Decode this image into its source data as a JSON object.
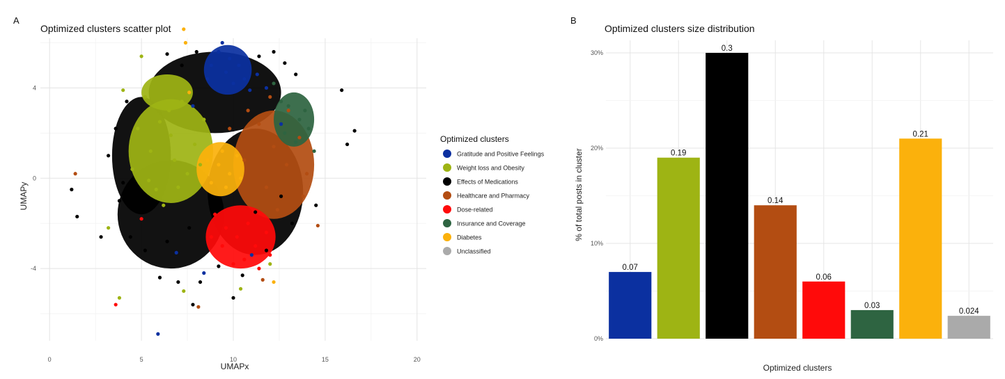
{
  "panels": {
    "a_label": "A",
    "b_label": "B"
  },
  "chart_data": [
    {
      "type": "scatter",
      "title": "Optimized clusters scatter plot",
      "xlabel": "UMAPx",
      "ylabel": "UMAPy",
      "xlim": [
        -0.5,
        20.5
      ],
      "ylim": [
        -7.2,
        6.2
      ],
      "xticks": [
        0,
        5,
        10,
        15,
        20
      ],
      "yticks": [
        -4,
        0,
        4
      ],
      "xtick_labels": [
        "0",
        "5",
        "10",
        "15",
        "20"
      ],
      "ytick_labels": [
        "-4",
        "0",
        "4"
      ],
      "grid": true,
      "legend_title": "Optimized clusters",
      "legend_position": "right",
      "series": [
        {
          "name": "Gratitude and Positive Feelings",
          "color": "#0b30a0",
          "points": [
            [
              9.2,
              5.6
            ],
            [
              9.8,
              5.3
            ],
            [
              10.3,
              5.0
            ],
            [
              8.8,
              5.0
            ],
            [
              9.6,
              4.7
            ],
            [
              10.6,
              4.4
            ],
            [
              11.3,
              4.6
            ],
            [
              10.0,
              4.2
            ],
            [
              8.6,
              4.4
            ],
            [
              11.8,
              4.0
            ],
            [
              9.4,
              6.0
            ],
            [
              10.9,
              3.9
            ],
            [
              7.8,
              3.2
            ],
            [
              12.6,
              2.4
            ],
            [
              6.9,
              -3.3
            ],
            [
              11.0,
              -3.4
            ],
            [
              8.4,
              -4.2
            ],
            [
              5.9,
              -6.9
            ]
          ]
        },
        {
          "name": "Weight loss and Obesity",
          "color": "#9eb414",
          "points": [
            [
              6.0,
              2.5
            ],
            [
              6.5,
              3.0
            ],
            [
              7.2,
              3.4
            ],
            [
              5.5,
              1.2
            ],
            [
              6.8,
              0.8
            ],
            [
              7.5,
              0.2
            ],
            [
              5.8,
              -0.5
            ],
            [
              4.8,
              2.2
            ],
            [
              6.2,
              -1.2
            ],
            [
              7.9,
              1.5
            ],
            [
              5.2,
              3.6
            ],
            [
              4.5,
              0.4
            ],
            [
              8.4,
              2.6
            ],
            [
              6.6,
              1.9
            ],
            [
              7.0,
              -0.4
            ],
            [
              5.4,
              -0.1
            ],
            [
              8.2,
              0.6
            ],
            [
              5.0,
              5.4
            ],
            [
              4.0,
              3.9
            ],
            [
              3.8,
              -5.3
            ],
            [
              3.2,
              -2.2
            ],
            [
              10.4,
              -4.9
            ],
            [
              12.0,
              -3.8
            ],
            [
              7.3,
              -5.0
            ]
          ]
        },
        {
          "name": "Effects of Medications",
          "color": "#000000",
          "points": [
            [
              3.8,
              -1.0
            ],
            [
              4.4,
              -2.6
            ],
            [
              5.2,
              -3.2
            ],
            [
              6.4,
              -2.8
            ],
            [
              7.6,
              -2.2
            ],
            [
              4.0,
              -0.2
            ],
            [
              3.6,
              2.2
            ],
            [
              4.2,
              3.4
            ],
            [
              11.2,
              -1.5
            ],
            [
              12.6,
              -0.8
            ],
            [
              13.2,
              -2.0
            ],
            [
              11.8,
              -3.2
            ],
            [
              10.5,
              -4.3
            ],
            [
              9.2,
              -3.9
            ],
            [
              8.2,
              -4.6
            ],
            [
              7.0,
              -4.6
            ],
            [
              6.0,
              -4.4
            ],
            [
              12.2,
              5.6
            ],
            [
              13.4,
              4.6
            ],
            [
              12.8,
              5.1
            ],
            [
              11.4,
              5.4
            ],
            [
              8.0,
              5.6
            ],
            [
              7.2,
              5.0
            ],
            [
              6.4,
              5.5
            ],
            [
              1.2,
              -0.5
            ],
            [
              1.5,
              -1.7
            ],
            [
              2.8,
              -2.6
            ],
            [
              14.5,
              -1.2
            ],
            [
              15.9,
              3.9
            ],
            [
              16.6,
              2.1
            ],
            [
              16.2,
              1.5
            ],
            [
              3.2,
              1.0
            ],
            [
              10.0,
              -5.3
            ],
            [
              7.8,
              -5.6
            ]
          ]
        },
        {
          "name": "Healthcare and Pharmacy",
          "color": "#b34d12",
          "points": [
            [
              11.4,
              2.4
            ],
            [
              12.2,
              1.4
            ],
            [
              12.9,
              0.6
            ],
            [
              11.8,
              -0.4
            ],
            [
              13.6,
              1.8
            ],
            [
              12.4,
              -1.4
            ],
            [
              13.8,
              -0.8
            ],
            [
              10.8,
              3.0
            ],
            [
              10.6,
              0.8
            ],
            [
              14.0,
              0.2
            ],
            [
              13.0,
              3.0
            ],
            [
              12.0,
              3.6
            ],
            [
              14.6,
              -2.1
            ],
            [
              9.8,
              2.2
            ],
            [
              1.4,
              0.2
            ],
            [
              8.1,
              -5.7
            ],
            [
              11.6,
              -4.5
            ]
          ]
        },
        {
          "name": "Dose-related",
          "color": "#ff0a0a",
          "points": [
            [
              9.6,
              -2.2
            ],
            [
              10.2,
              -2.6
            ],
            [
              10.8,
              -2.0
            ],
            [
              11.2,
              -3.0
            ],
            [
              9.4,
              -3.0
            ],
            [
              10.6,
              -3.6
            ],
            [
              11.8,
              -2.4
            ],
            [
              8.8,
              -2.6
            ],
            [
              12.0,
              -3.4
            ],
            [
              10.0,
              -3.8
            ],
            [
              11.4,
              -4.0
            ],
            [
              9.0,
              -1.6
            ],
            [
              3.6,
              -5.6
            ],
            [
              5.0,
              -1.8
            ]
          ]
        },
        {
          "name": "Insurance and Coverage",
          "color": "#2e6441",
          "points": [
            [
              13.0,
              3.2
            ],
            [
              13.6,
              2.6
            ],
            [
              12.8,
              2.0
            ],
            [
              14.1,
              2.2
            ],
            [
              13.4,
              1.6
            ],
            [
              12.6,
              3.4
            ],
            [
              13.9,
              3.0
            ],
            [
              14.4,
              1.2
            ],
            [
              12.2,
              4.2
            ]
          ]
        },
        {
          "name": "Diabetes",
          "color": "#fbb10c",
          "points": [
            [
              9.2,
              0.6
            ],
            [
              9.8,
              0.2
            ],
            [
              9.4,
              1.2
            ],
            [
              8.8,
              -0.2
            ],
            [
              10.2,
              1.0
            ],
            [
              8.6,
              0.8
            ],
            [
              9.6,
              -0.4
            ],
            [
              10.4,
              0.0
            ],
            [
              7.3,
              6.6
            ],
            [
              7.4,
              6.0
            ],
            [
              7.6,
              3.8
            ],
            [
              12.2,
              -4.6
            ]
          ]
        },
        {
          "name": "Unclassified",
          "color": "#aaaaaa",
          "points": []
        }
      ]
    },
    {
      "type": "bar",
      "title": "Optimized clusters size distribution",
      "xlabel": "Optimized clusters",
      "ylabel": "% of total posts in cluster",
      "ylim": [
        0,
        0.3
      ],
      "yticks": [
        0,
        0.1,
        0.2,
        0.3
      ],
      "ytick_labels": [
        "0%",
        "10%",
        "20%",
        "30%"
      ],
      "grid": true,
      "categories": [
        "Gratitude and Positive Feelings",
        "Weight loss and Obesity",
        "Effects of Medications",
        "Healthcare and Pharmacy",
        "Dose-related",
        "Insurance and Coverage",
        "Diabetes",
        "Unclassified"
      ],
      "values": [
        0.07,
        0.19,
        0.3,
        0.14,
        0.06,
        0.03,
        0.21,
        0.024
      ],
      "value_labels": [
        "0.07",
        "0.19",
        "0.3",
        "0.14",
        "0.06",
        "0.03",
        "0.21",
        "0.024"
      ],
      "colors": [
        "#0b30a0",
        "#9eb414",
        "#000000",
        "#b34d12",
        "#ff0a0a",
        "#2e6441",
        "#fbb10c",
        "#aaaaaa"
      ]
    }
  ]
}
